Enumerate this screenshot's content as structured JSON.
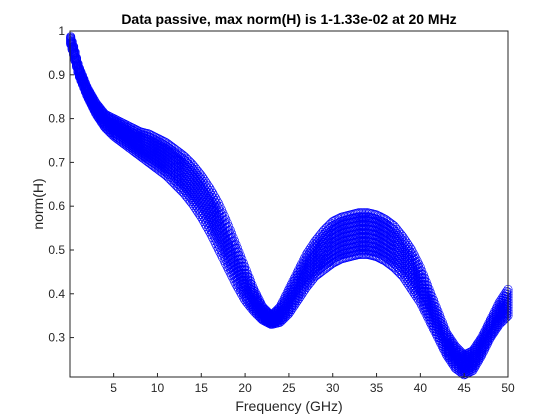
{
  "chart_data": {
    "type": "scatter",
    "title": "Data passive, max norm(H) is 1-1.33e-02 at 20 MHz",
    "xlabel": "Frequency (GHz)",
    "ylabel": "norm(H)",
    "xlim": [
      0.02,
      50
    ],
    "ylim": [
      0.21,
      1.0
    ],
    "xticks": [
      5,
      10,
      15,
      20,
      25,
      30,
      35,
      40,
      45,
      50
    ],
    "yticks": [
      0.3,
      0.4,
      0.5,
      0.6,
      0.7,
      0.8,
      0.9,
      1
    ],
    "xtick_labels": [
      "5",
      "10",
      "15",
      "20",
      "25",
      "30",
      "35",
      "40",
      "45",
      "50"
    ],
    "ytick_labels": [
      "0.3",
      "0.4",
      "0.5",
      "0.6",
      "0.7",
      "0.8",
      "0.9",
      "1"
    ],
    "grid": false,
    "marker": "open-circle",
    "marker_color": "#0000ff",
    "band_envelope": {
      "x": [
        0.1,
        0.5,
        1,
        2,
        3,
        4,
        5,
        6,
        7,
        8,
        9,
        10,
        11,
        12,
        13,
        14,
        15,
        16,
        17,
        18,
        19,
        20,
        21,
        22,
        23,
        24,
        25,
        26,
        27,
        28,
        29,
        30,
        31,
        32,
        33,
        34,
        35,
        36,
        37,
        38,
        39,
        40,
        41,
        42,
        43,
        44,
        45,
        46,
        47,
        48,
        49,
        50
      ],
      "upper": [
        0.987,
        0.96,
        0.92,
        0.87,
        0.835,
        0.81,
        0.8,
        0.79,
        0.78,
        0.77,
        0.765,
        0.755,
        0.745,
        0.73,
        0.715,
        0.695,
        0.67,
        0.64,
        0.605,
        0.56,
        0.51,
        0.46,
        0.41,
        0.37,
        0.35,
        0.37,
        0.41,
        0.45,
        0.49,
        0.52,
        0.545,
        0.565,
        0.575,
        0.58,
        0.585,
        0.585,
        0.58,
        0.57,
        0.555,
        0.53,
        0.5,
        0.46,
        0.41,
        0.36,
        0.31,
        0.28,
        0.26,
        0.27,
        0.3,
        0.34,
        0.38,
        0.41
      ],
      "lower": [
        0.97,
        0.94,
        0.9,
        0.85,
        0.81,
        0.78,
        0.76,
        0.745,
        0.73,
        0.715,
        0.7,
        0.685,
        0.67,
        0.65,
        0.63,
        0.605,
        0.575,
        0.54,
        0.5,
        0.46,
        0.42,
        0.385,
        0.36,
        0.34,
        0.33,
        0.335,
        0.355,
        0.385,
        0.415,
        0.44,
        0.455,
        0.47,
        0.48,
        0.485,
        0.49,
        0.49,
        0.485,
        0.475,
        0.46,
        0.44,
        0.41,
        0.38,
        0.34,
        0.3,
        0.26,
        0.23,
        0.215,
        0.225,
        0.26,
        0.3,
        0.33,
        0.35
      ]
    }
  }
}
